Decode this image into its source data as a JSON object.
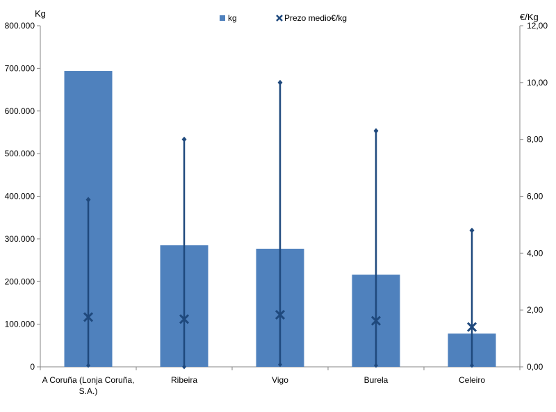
{
  "chart_data": {
    "type": "bar",
    "categories": [
      [
        "A Coruña (Lonja Coruña,",
        "S.A.)"
      ],
      [
        "Ribeira"
      ],
      [
        "Vigo"
      ],
      [
        "Burela"
      ],
      [
        "Celeiro"
      ]
    ],
    "left_axis": {
      "unit_label": "Kg",
      "ylim": [
        0,
        800000
      ],
      "ticks": [
        0,
        100000,
        200000,
        300000,
        400000,
        500000,
        600000,
        700000,
        800000
      ],
      "tick_labels": [
        "0",
        "100.000",
        "200.000",
        "300.000",
        "400.000",
        "500.000",
        "600.000",
        "700.000",
        "800.000"
      ]
    },
    "right_axis": {
      "unit_label": "€/Kg",
      "ylim": [
        0,
        12
      ],
      "ticks": [
        0,
        2,
        4,
        6,
        8,
        10,
        12
      ],
      "tick_labels": [
        "0,00",
        "2,00",
        "4,00",
        "6,00",
        "8,00",
        "10,00",
        "12,00"
      ]
    },
    "series": [
      {
        "name": "kg",
        "kind": "bar",
        "axis": "left",
        "color": "#4f81bd",
        "values": [
          694000,
          285000,
          277000,
          216000,
          78000
        ]
      },
      {
        "name": "Prezo medio€/kg",
        "kind": "range-marker",
        "axis": "right",
        "color": "#1f497d",
        "values": [
          1.75,
          1.68,
          1.83,
          1.62,
          1.4
        ],
        "low": [
          0.05,
          0.0,
          0.08,
          0.05,
          0.05
        ],
        "high": [
          5.88,
          8.0,
          10.0,
          8.3,
          4.8
        ]
      }
    ],
    "grid": false,
    "legend_position": "top-center"
  }
}
